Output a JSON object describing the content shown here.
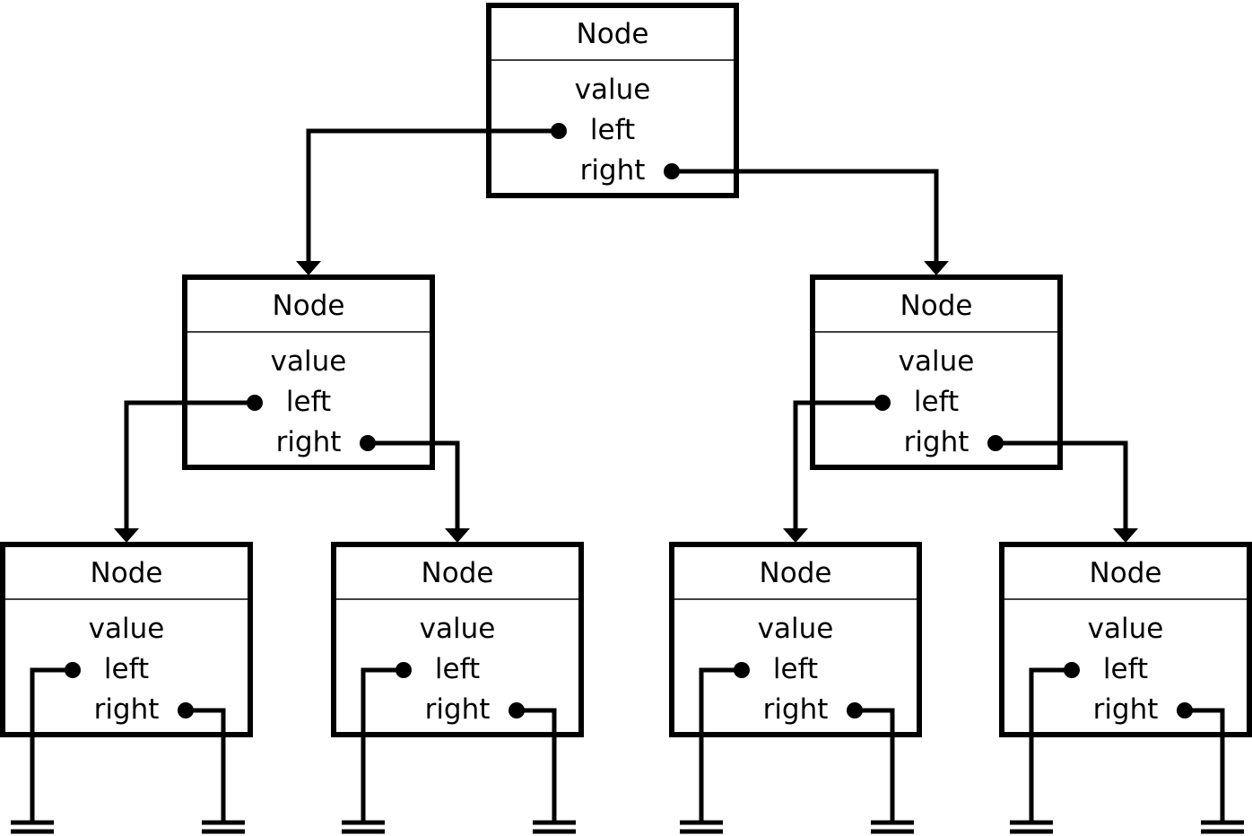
{
  "labels": {
    "node_title": "Node",
    "field_value": "value",
    "field_left": "left",
    "field_right": "right"
  },
  "tree": {
    "root": {
      "id": "root",
      "left": {
        "id": "left-child",
        "left": {
          "id": "left-left-leaf",
          "left": null,
          "right": null
        },
        "right": {
          "id": "left-right-leaf",
          "left": null,
          "right": null
        }
      },
      "right": {
        "id": "right-child",
        "left": {
          "id": "right-left-leaf",
          "left": null,
          "right": null
        },
        "right": {
          "id": "right-right-leaf",
          "left": null,
          "right": null
        }
      }
    }
  },
  "colors": {
    "stroke": "#000000",
    "background": "#ffffff"
  }
}
